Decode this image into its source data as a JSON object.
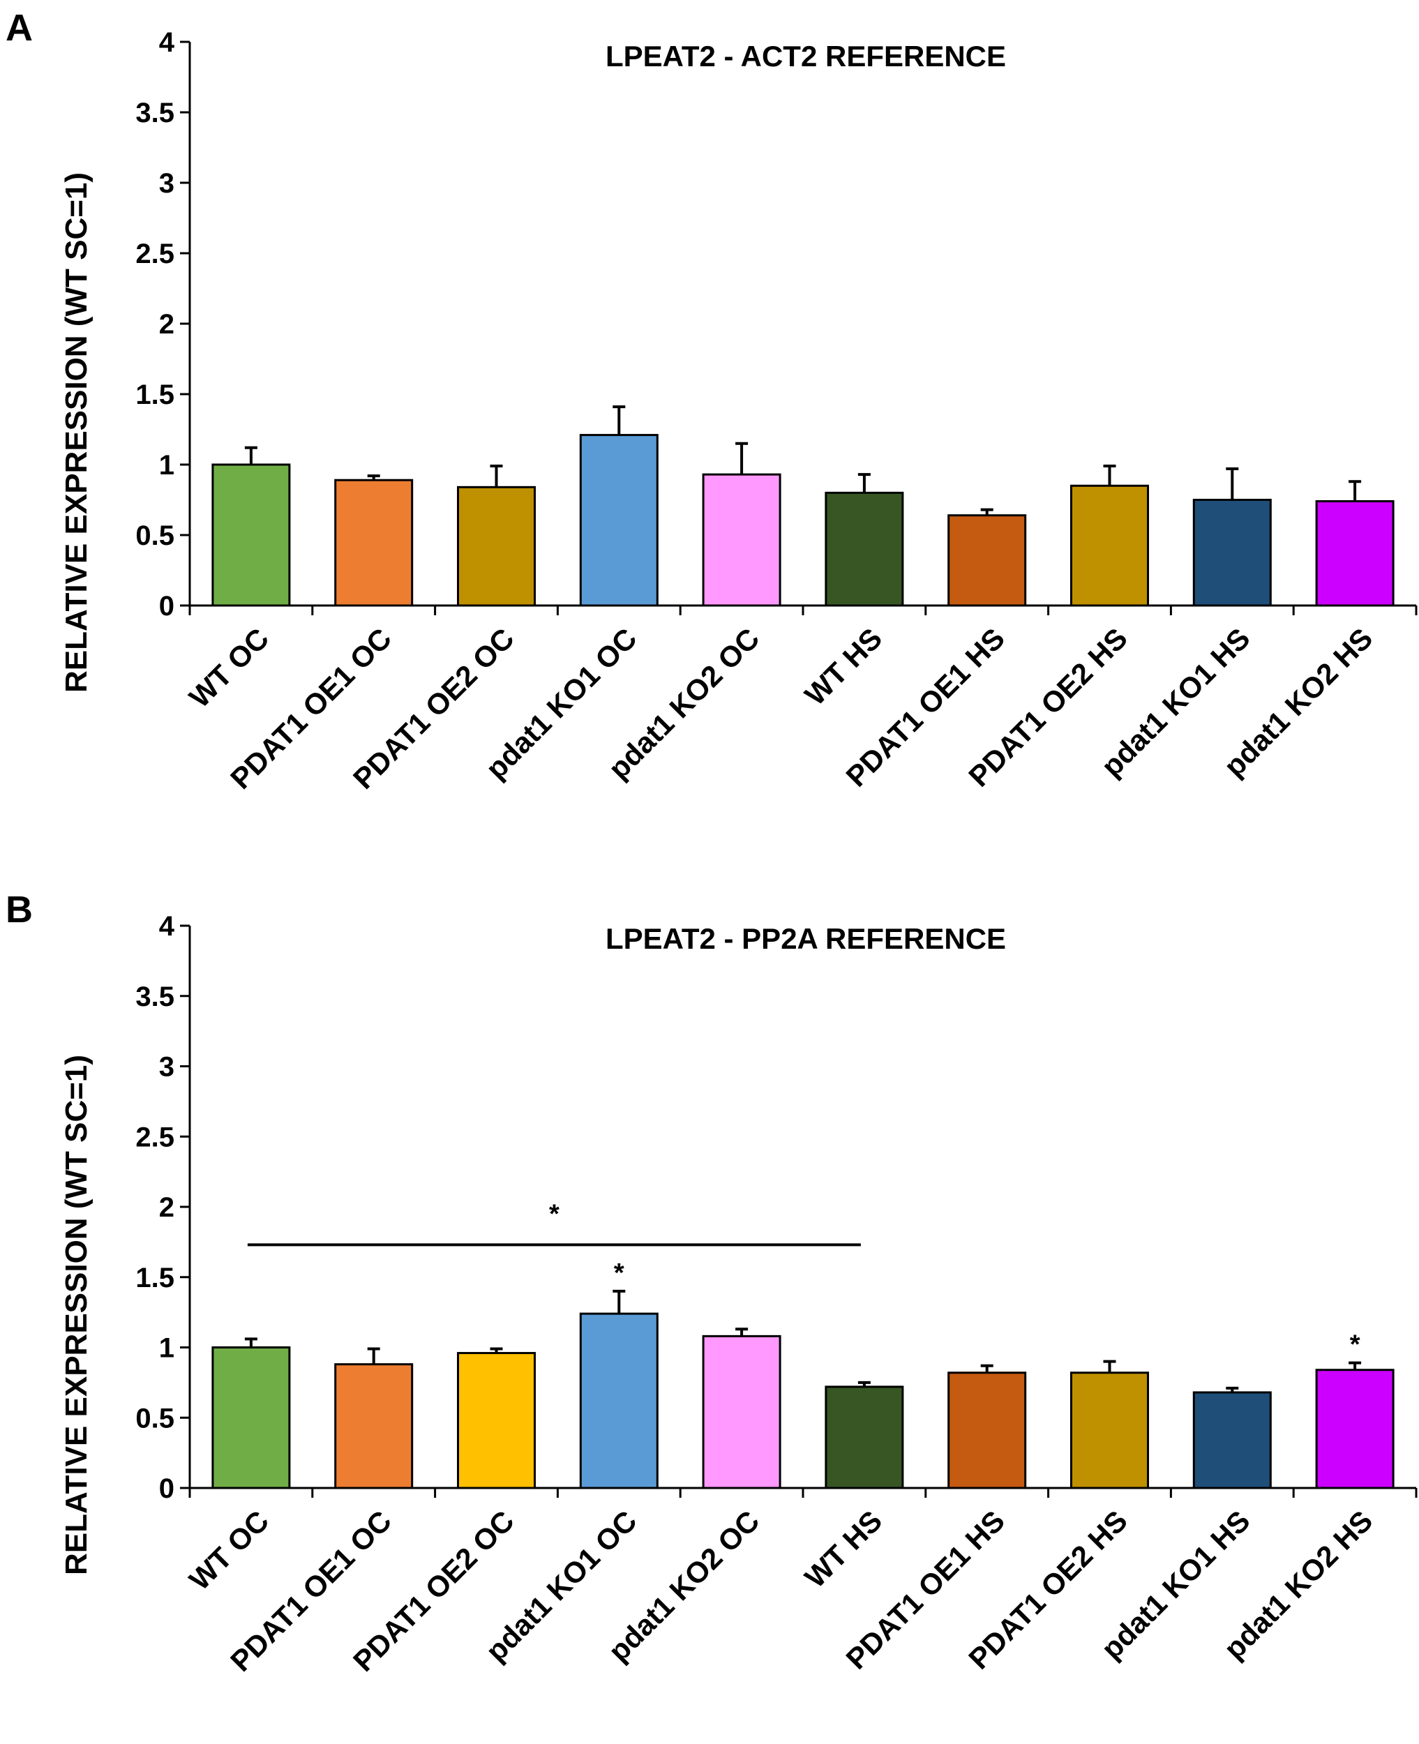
{
  "chart_data": [
    {
      "panel": "A",
      "type": "bar",
      "title": "LPEAT2 - ACT2 REFERENCE",
      "ylabel": "RELATIVE EXPRESSION (WT SC=1)",
      "xlabel": "",
      "ylim": [
        0,
        4
      ],
      "yticks": [
        "0",
        "0.5",
        "1",
        "1.5",
        "2",
        "2.5",
        "3",
        "3.5",
        "4"
      ],
      "categories": [
        "WT OC",
        "PDAT1 OE1 OC",
        "PDAT1 OE2 OC",
        "pdat1 KO1 OC",
        "pdat1 KO2 OC",
        "WT HS",
        "PDAT1 OE1 HS",
        "PDAT1 OE2 HS",
        "pdat1 KO1 HS",
        "pdat1 KO2 HS"
      ],
      "values": [
        1.0,
        0.89,
        0.84,
        1.21,
        0.93,
        0.8,
        0.64,
        0.85,
        0.75,
        0.74
      ],
      "errors": [
        0.12,
        0.03,
        0.15,
        0.2,
        0.22,
        0.13,
        0.04,
        0.14,
        0.22,
        0.14
      ],
      "colors": [
        "#70ad47",
        "#ed7d31",
        "#bf9000",
        "#5b9bd5",
        "#ff99ff",
        "#375623",
        "#c55a11",
        "#bf9000",
        "#1f4e79",
        "#cc00ff"
      ],
      "stars": [],
      "bracket": null
    },
    {
      "panel": "B",
      "type": "bar",
      "title": "LPEAT2 - PP2A REFERENCE",
      "ylabel": "RELATIVE EXPRESSION (WT SC=1)",
      "xlabel": "",
      "ylim": [
        0,
        4
      ],
      "yticks": [
        "0",
        "0.5",
        "1",
        "1.5",
        "2",
        "2.5",
        "3",
        "3.5",
        "4"
      ],
      "categories": [
        "WT OC",
        "PDAT1 OE1 OC",
        "PDAT1 OE2 OC",
        "pdat1 KO1 OC",
        "pdat1 KO2 OC",
        "WT HS",
        "PDAT1 OE1 HS",
        "PDAT1 OE2 HS",
        "pdat1 KO1 HS",
        "pdat1 KO2 HS"
      ],
      "values": [
        1.0,
        0.88,
        0.96,
        1.24,
        1.08,
        0.72,
        0.82,
        0.82,
        0.68,
        0.84
      ],
      "errors": [
        0.06,
        0.11,
        0.03,
        0.16,
        0.05,
        0.03,
        0.05,
        0.08,
        0.03,
        0.05
      ],
      "colors": [
        "#70ad47",
        "#ed7d31",
        "#ffc000",
        "#5b9bd5",
        "#ff99ff",
        "#375623",
        "#c55a11",
        "#bf9000",
        "#1f4e79",
        "#cc00ff"
      ],
      "stars": [
        {
          "index": 3,
          "text": "*"
        },
        {
          "index": 9,
          "text": "*"
        }
      ],
      "bracket": {
        "from_index": 0,
        "to_index": 5,
        "value": 1.73,
        "text": "*"
      }
    }
  ]
}
